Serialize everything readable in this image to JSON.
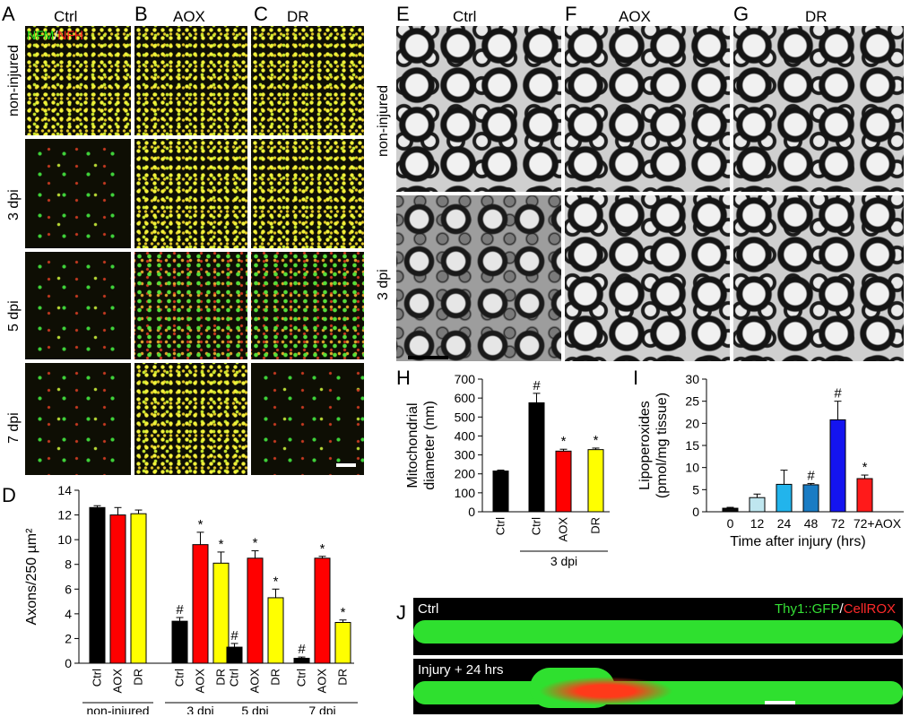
{
  "left_panels": {
    "labels": [
      "A",
      "B",
      "C"
    ],
    "columns": [
      "Ctrl",
      "AOX",
      "DR"
    ],
    "rows": [
      "non-injured",
      "3 dpi",
      "5 dpi",
      "7 dpi"
    ],
    "stain": {
      "part1": "NFM",
      "sep": "/",
      "part2": "NFH"
    },
    "stain_colors": {
      "part1": "#1ee01e",
      "part2": "#ff2020"
    }
  },
  "em_panels": {
    "labels": [
      "E",
      "F",
      "G"
    ],
    "columns": [
      "Ctrl",
      "AOX",
      "DR"
    ],
    "rows": [
      "non-injured",
      "3 dpi"
    ]
  },
  "panel_d_label": "D",
  "panel_h_label": "H",
  "panel_i_label": "I",
  "panel_j_label": "J",
  "panel_j": {
    "top_label": "Ctrl",
    "bottom_label": "Injury + 24 hrs",
    "legend": {
      "part1": "Thy1::GFP",
      "sep": "/",
      "part2": "CellROX"
    },
    "legend_colors": {
      "part1": "#35e035",
      "part2": "#ff2a2a"
    }
  },
  "colors": {
    "ctrl": "#000000",
    "aox": "#ff0000",
    "dr": "#ffff00",
    "bar_edge": "#000000"
  },
  "chart_data": [
    {
      "id": "D",
      "type": "bar",
      "ylabel": "Axons/250 µm²",
      "ylim": [
        0,
        14
      ],
      "yticks": [
        0,
        2,
        4,
        6,
        8,
        10,
        12,
        14
      ],
      "tick_labels": [
        "Ctrl",
        "AOX",
        "DR"
      ],
      "groups": [
        {
          "name": "non-injured",
          "values": [
            12.6,
            12.0,
            12.1
          ],
          "errors": [
            0.15,
            0.6,
            0.3
          ],
          "marks": [
            "",
            "",
            ""
          ]
        },
        {
          "name": "3 dpi",
          "values": [
            3.4,
            9.6,
            8.1
          ],
          "errors": [
            0.3,
            1.0,
            0.9
          ],
          "marks": [
            "#",
            "*",
            "*"
          ]
        },
        {
          "name": "5 dpi",
          "values": [
            1.3,
            8.5,
            5.3
          ],
          "errors": [
            0.3,
            0.6,
            0.7
          ],
          "marks": [
            "#",
            "*",
            "*"
          ]
        },
        {
          "name": "7 dpi",
          "values": [
            0.4,
            8.5,
            3.3
          ],
          "errors": [
            0.1,
            0.15,
            0.2
          ],
          "marks": [
            "#",
            "*",
            "*"
          ]
        }
      ]
    },
    {
      "id": "H",
      "type": "bar",
      "ylabel_line1": "Mitochondrial",
      "ylabel_line2": "diameter (nm)",
      "ylim": [
        0,
        700
      ],
      "yticks": [
        0,
        100,
        200,
        300,
        400,
        500,
        600,
        700
      ],
      "categories": [
        "Ctrl",
        "Ctrl",
        "AOX",
        "DR"
      ],
      "values": [
        215,
        575,
        320,
        328
      ],
      "errors": [
        5,
        50,
        10,
        8
      ],
      "marks": [
        "",
        "#",
        "*",
        "*"
      ],
      "group_label": "3 dpi"
    },
    {
      "id": "I",
      "type": "bar",
      "ylabel_line1": "Lipoperoxides",
      "ylabel_line2": "(pmol/mg tissue)",
      "xlabel": "Time after injury (hrs)",
      "ylim": [
        0,
        30
      ],
      "yticks": [
        0,
        5,
        10,
        15,
        20,
        25,
        30
      ],
      "categories": [
        "0",
        "12",
        "24",
        "48",
        "72",
        "72+AOX"
      ],
      "values": [
        0.8,
        3.2,
        6.2,
        6.1,
        20.8,
        7.5
      ],
      "errors": [
        0.2,
        0.8,
        3.2,
        0.3,
        4.2,
        0.8
      ],
      "marks": [
        "",
        "",
        "",
        "#",
        "#",
        "*"
      ],
      "bar_colors": [
        "#0a0a0a",
        "#bfe6ef",
        "#22b4ec",
        "#1a7cc4",
        "#1414f0",
        "#ff1a1a"
      ]
    }
  ]
}
